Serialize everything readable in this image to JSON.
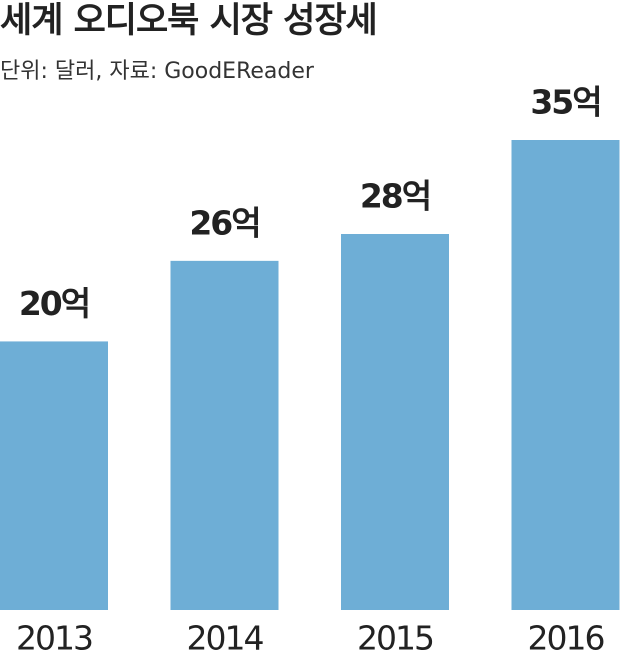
{
  "chart_data": {
    "type": "bar",
    "title": "세계 오디오북 시장 성장세",
    "subtitle": "단위: 달러, 자료: GoodEReader",
    "categories": [
      "2013",
      "2014",
      "2015",
      "2016"
    ],
    "values": [
      20,
      26,
      28,
      35
    ],
    "value_labels": [
      "20억",
      "26억",
      "28억",
      "35억"
    ],
    "color": "#6eaed6"
  }
}
